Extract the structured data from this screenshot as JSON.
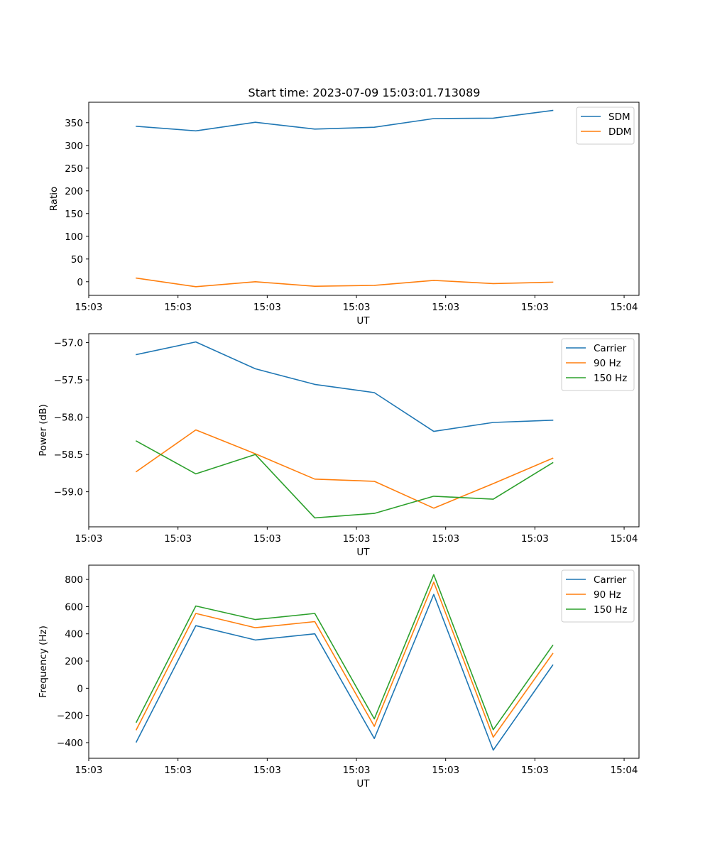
{
  "figure_title": "Start time: 2023-07-09 15:03:01.713089",
  "chart_data": [
    {
      "type": "line",
      "title": "Start time: 2023-07-09 15:03:01.713089",
      "xlabel": "UT",
      "ylabel": "Ratio",
      "x": [
        1,
        2,
        3,
        4,
        5,
        6,
        7,
        8
      ],
      "xlim": [
        0.2,
        9.45
      ],
      "ylim": [
        -30,
        395
      ],
      "xticks": [
        0.2,
        1.7,
        3.2,
        4.7,
        6.2,
        7.7,
        9.2
      ],
      "xtick_labels": [
        "15:03",
        "15:03",
        "15:03",
        "15:03",
        "15:03",
        "15:03",
        "15:04"
      ],
      "yticks": [
        0,
        50,
        100,
        150,
        200,
        250,
        300,
        350
      ],
      "ytick_labels": [
        "0",
        "50",
        "100",
        "150",
        "200",
        "250",
        "300",
        "350"
      ],
      "legend_position": "upper-right",
      "series": [
        {
          "name": "SDM",
          "color": "#1f77b4",
          "values": [
            342,
            332,
            351,
            336,
            340,
            359,
            360,
            377
          ]
        },
        {
          "name": "DDM",
          "color": "#ff7f0e",
          "values": [
            8,
            -11,
            0,
            -10,
            -8,
            3,
            -4,
            -1
          ]
        }
      ]
    },
    {
      "type": "line",
      "xlabel": "UT",
      "ylabel": "Power (dB)",
      "x": [
        1,
        2,
        3,
        4,
        5,
        6,
        7,
        8
      ],
      "xlim": [
        0.2,
        9.45
      ],
      "ylim": [
        -59.47,
        -56.88
      ],
      "xticks": [
        0.2,
        1.7,
        3.2,
        4.7,
        6.2,
        7.7,
        9.2
      ],
      "xtick_labels": [
        "15:03",
        "15:03",
        "15:03",
        "15:03",
        "15:03",
        "15:03",
        "15:04"
      ],
      "yticks": [
        -59.0,
        -58.5,
        -58.0,
        -57.5,
        -57.0
      ],
      "ytick_labels": [
        "−59.0",
        "−58.5",
        "−58.0",
        "−57.5",
        "−57.0"
      ],
      "legend_position": "upper-right",
      "series": [
        {
          "name": "Carrier",
          "color": "#1f77b4",
          "values": [
            -57.16,
            -56.99,
            -57.35,
            -57.56,
            -57.67,
            -58.19,
            -58.07,
            -58.04
          ]
        },
        {
          "name": "90 Hz",
          "color": "#ff7f0e",
          "values": [
            -58.73,
            -58.17,
            -58.49,
            -58.83,
            -58.86,
            -59.22,
            -58.89,
            -58.55
          ]
        },
        {
          "name": "150 Hz",
          "color": "#2ca02c",
          "values": [
            -58.32,
            -58.76,
            -58.5,
            -59.35,
            -59.29,
            -59.06,
            -59.1,
            -58.61
          ]
        }
      ]
    },
    {
      "type": "line",
      "xlabel": "UT",
      "ylabel": "Frequency (Hz)",
      "x": [
        1,
        2,
        3,
        4,
        5,
        6,
        7,
        8
      ],
      "xlim": [
        0.2,
        9.45
      ],
      "ylim": [
        -515,
        905
      ],
      "xticks": [
        0.2,
        1.7,
        3.2,
        4.7,
        6.2,
        7.7,
        9.2
      ],
      "xtick_labels": [
        "15:03",
        "15:03",
        "15:03",
        "15:03",
        "15:03",
        "15:03",
        "15:04"
      ],
      "yticks": [
        -400,
        -200,
        0,
        200,
        400,
        600,
        800
      ],
      "ytick_labels": [
        "−400",
        "−200",
        "0",
        "200",
        "400",
        "600",
        "800"
      ],
      "legend_position": "upper-right",
      "series": [
        {
          "name": "Carrier",
          "color": "#1f77b4",
          "values": [
            -395,
            460,
            355,
            400,
            -370,
            690,
            -455,
            170
          ]
        },
        {
          "name": "90 Hz",
          "color": "#ff7f0e",
          "values": [
            -305,
            550,
            445,
            490,
            -280,
            780,
            -360,
            255
          ]
        },
        {
          "name": "150 Hz",
          "color": "#2ca02c",
          "values": [
            -250,
            605,
            505,
            550,
            -225,
            835,
            -305,
            315
          ]
        }
      ]
    }
  ]
}
